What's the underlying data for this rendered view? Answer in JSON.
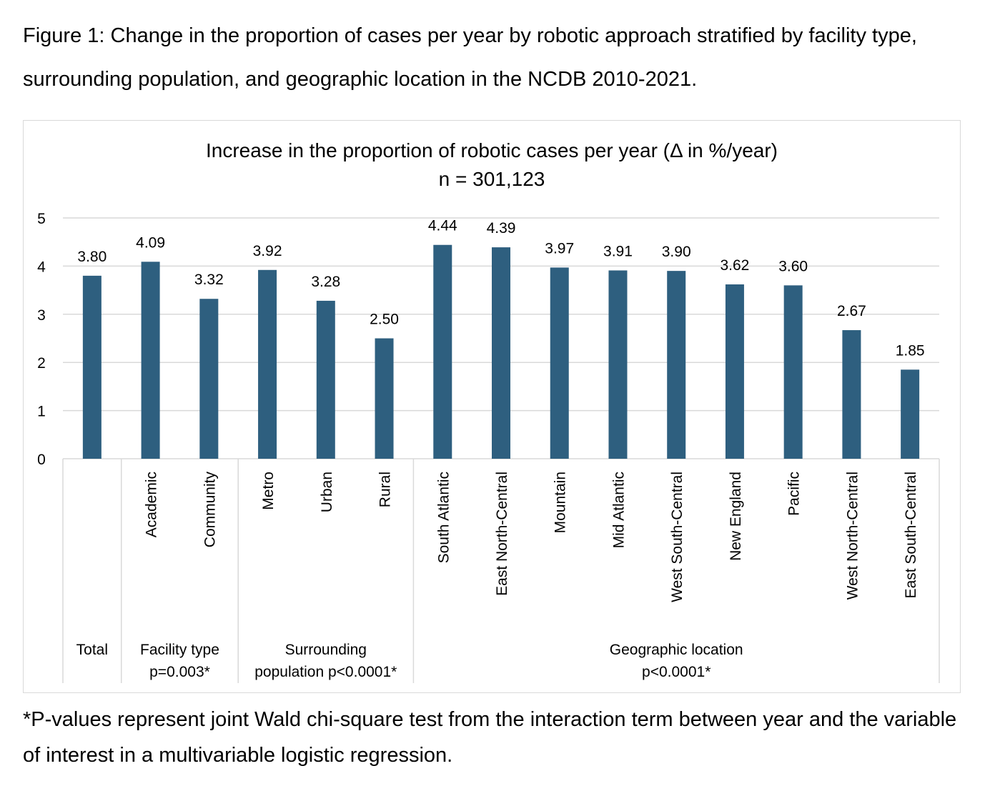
{
  "caption": "Figure 1: Change in the proportion of cases per year by robotic approach stratified by facility type, surrounding population, and geographic location in the NCDB 2010-2021.",
  "footnote": "*P-values represent joint Wald chi-square test from the interaction term between year and the variable of interest in a multivariable logistic regression.",
  "colors": {
    "bar": "#2e5f7f",
    "gridline": "#d9d9d9",
    "frame": "#d9d9d9"
  },
  "chart_data": {
    "type": "bar",
    "title": "Increase in the proportion of robotic cases per year (Δ in %/year)",
    "subtitle": "n = 301,123",
    "xlabel": "",
    "ylabel": "",
    "ylim": [
      0,
      5
    ],
    "yticks": [
      "0",
      "1",
      "2",
      "3",
      "4",
      "5"
    ],
    "grid": true,
    "legend": "none",
    "categories": [
      "",
      "Academic",
      "Community",
      "Metro",
      "Urban",
      "Rural",
      "South Atlantic",
      "East North-Central",
      "Mountain",
      "Mid Atlantic",
      "West South-Central",
      "New England",
      "Pacific",
      "West North-Central",
      "East South-Central"
    ],
    "values": [
      3.8,
      4.09,
      3.32,
      3.92,
      3.28,
      2.5,
      4.44,
      4.39,
      3.97,
      3.91,
      3.9,
      3.62,
      3.6,
      2.67,
      1.85
    ],
    "data_labels": [
      "3.80",
      "4.09",
      "3.32",
      "3.92",
      "3.28",
      "2.50",
      "4.44",
      "4.39",
      "3.97",
      "3.91",
      "3.90",
      "3.62",
      "3.60",
      "2.67",
      "1.85"
    ],
    "groups": [
      {
        "lines": [
          "Total"
        ],
        "start": 0,
        "count": 1
      },
      {
        "lines": [
          "Facility type",
          "p=0.003*"
        ],
        "start": 1,
        "count": 2
      },
      {
        "lines": [
          "Surrounding",
          "population p<0.0001*"
        ],
        "start": 3,
        "count": 3
      },
      {
        "lines": [
          "Geographic location",
          "p<0.0001*"
        ],
        "start": 6,
        "count": 9
      }
    ]
  }
}
